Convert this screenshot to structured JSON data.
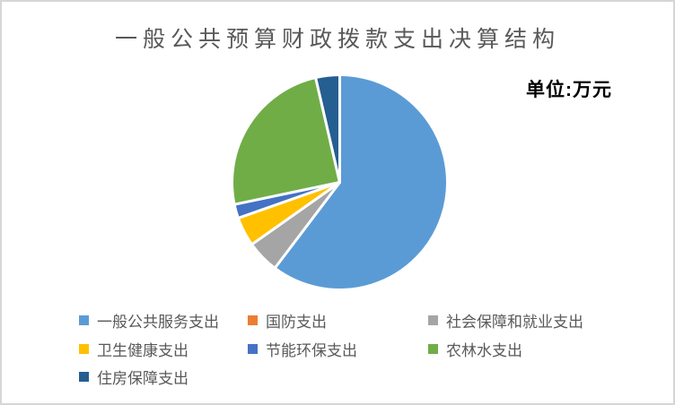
{
  "frame": {
    "background": "#FFFFFF",
    "border_color": "#D6D6D6"
  },
  "chart_data": {
    "type": "pie",
    "title": "一般公共预算财政拨款支出决算结构",
    "unit_label": "单位:万元",
    "slices": [
      {
        "label": "一般公共服务支出",
        "percent": 60.3,
        "color": "#5B9BD5"
      },
      {
        "label": "国防支出",
        "percent": 0.0,
        "color": "#ED7D31"
      },
      {
        "label": "社会保障和就业支出",
        "percent": 4.9,
        "color": "#A5A5A5"
      },
      {
        "label": "卫生健康支出",
        "percent": 4.4,
        "color": "#FFC000"
      },
      {
        "label": "节能环保支出",
        "percent": 2.1,
        "color": "#4472C4"
      },
      {
        "label": "农林水支出",
        "percent": 24.7,
        "color": "#70AD47"
      },
      {
        "label": "住房保障支出",
        "percent": 3.6,
        "color": "#255E91"
      }
    ],
    "start_angle_deg": 0,
    "direction": "clockwise",
    "slice_border_color": "#FFFFFF",
    "data_labels_shown": false,
    "title_color": "#595959",
    "legend_text_color": "#595959",
    "legend_position": "bottom",
    "legend_columns": 3
  }
}
